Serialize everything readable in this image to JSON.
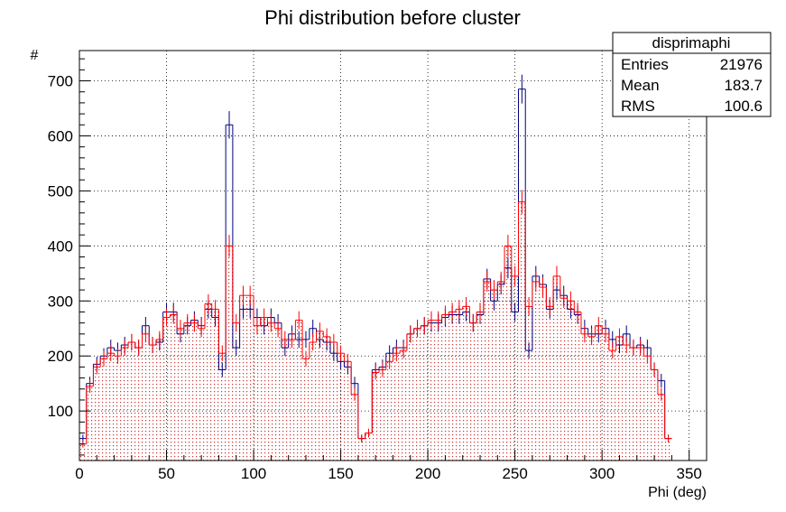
{
  "chart_data": {
    "type": "histogram",
    "title": "Phi distribution before cluster",
    "xlabel": "Phi (deg)",
    "ylabel": "#",
    "xlim": [
      0,
      360
    ],
    "ylim": [
      10,
      755
    ],
    "bin_width": 4,
    "grid": true,
    "x_ticks": [
      "0",
      "50",
      "100",
      "150",
      "200",
      "250",
      "300",
      "350"
    ],
    "y_ticks": [
      "100",
      "200",
      "300",
      "400",
      "500",
      "600",
      "700"
    ],
    "series": [
      {
        "color": "#00007f",
        "fill": "none",
        "values": [
          50,
          150,
          185,
          200,
          215,
          210,
          220,
          225,
          215,
          255,
          220,
          225,
          280,
          280,
          240,
          255,
          265,
          255,
          285,
          270,
          175,
          620,
          215,
          285,
          285,
          270,
          255,
          270,
          260,
          215,
          240,
          230,
          230,
          250,
          230,
          225,
          205,
          190,
          180,
          150,
          50,
          60,
          175,
          180,
          205,
          215,
          215,
          240,
          250,
          255,
          260,
          260,
          270,
          275,
          275,
          280,
          260,
          275,
          340,
          300,
          330,
          360,
          280,
          685,
          210,
          345,
          330,
          285,
          320,
          310,
          285,
          275,
          250,
          240,
          240,
          250,
          230,
          220,
          240,
          215,
          220,
          215,
          175,
          155,
          50
        ]
      },
      {
        "color": "#ff0000",
        "fill": "dotted",
        "values": [
          40,
          145,
          180,
          195,
          205,
          200,
          215,
          225,
          215,
          240,
          220,
          230,
          270,
          275,
          250,
          260,
          260,
          250,
          295,
          285,
          205,
          400,
          260,
          310,
          310,
          255,
          270,
          260,
          250,
          230,
          230,
          265,
          195,
          225,
          245,
          235,
          225,
          205,
          190,
          130,
          50,
          60,
          170,
          175,
          190,
          205,
          210,
          240,
          250,
          255,
          265,
          265,
          275,
          280,
          285,
          290,
          260,
          280,
          335,
          320,
          335,
          400,
          345,
          480,
          290,
          335,
          325,
          290,
          345,
          305,
          300,
          280,
          240,
          235,
          255,
          240,
          210,
          235,
          220,
          215,
          215,
          200,
          175,
          130,
          50
        ]
      }
    ]
  },
  "stats": {
    "title": "disprimaphi",
    "rows": [
      {
        "name": "Entries",
        "value": "21976"
      },
      {
        "name": "Mean",
        "value": "183.7"
      },
      {
        "name": "RMS",
        "value": "100.6"
      }
    ]
  }
}
